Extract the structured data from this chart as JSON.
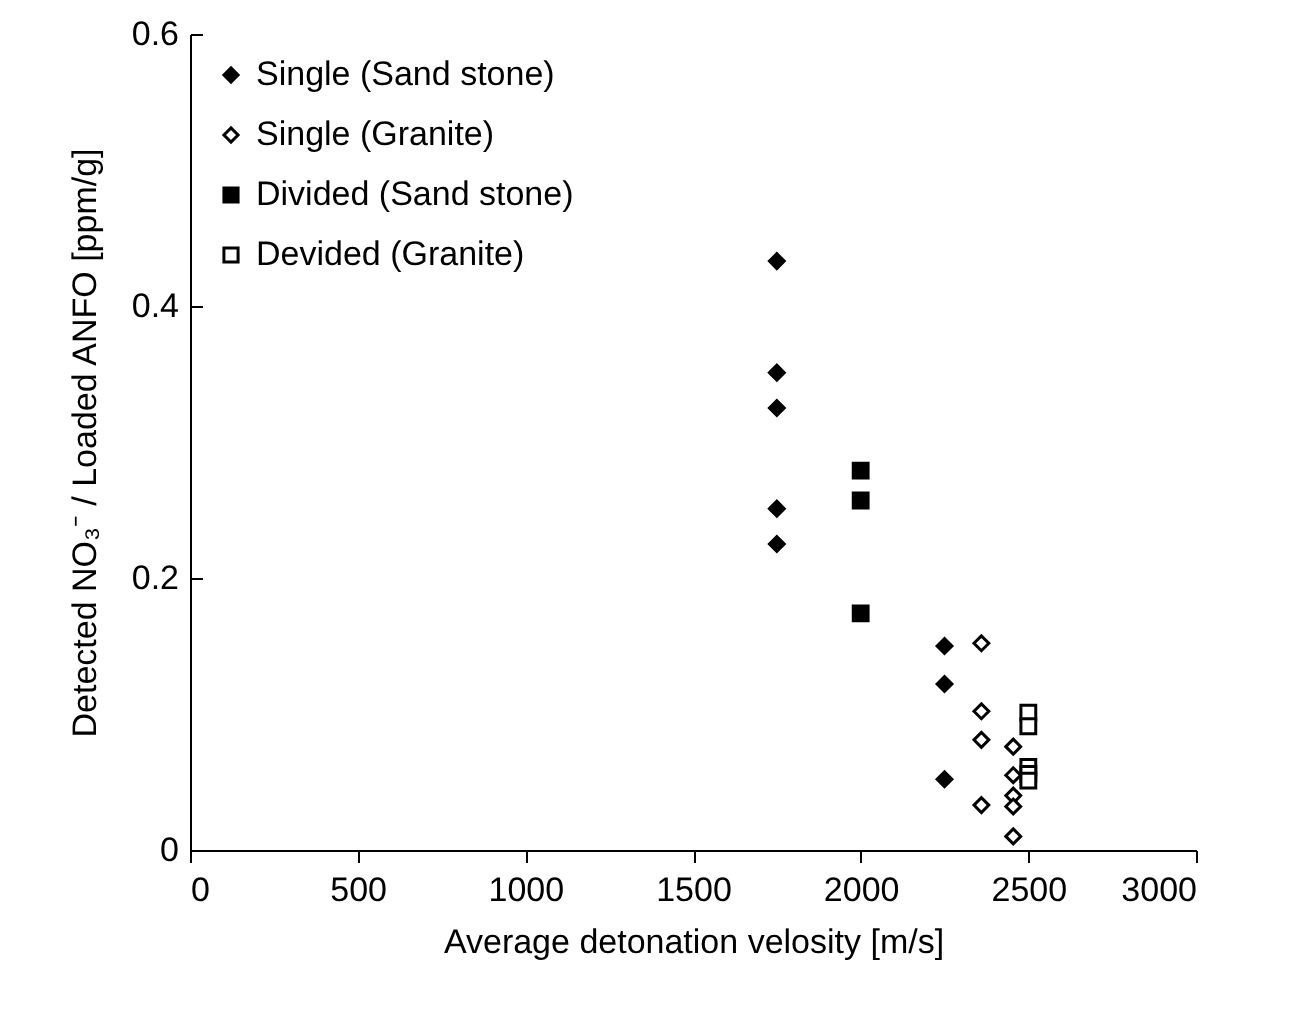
{
  "chart_data": {
    "type": "scatter",
    "xlabel": "Average detonation velosity [m/s]",
    "ylabel": "Detected NO₃⁻ / Loaded ANFO [ppm/g]",
    "xlim": [
      0,
      3000
    ],
    "xticks": [
      0,
      500,
      1000,
      1500,
      2000,
      2500,
      3000
    ],
    "ylim": [
      0,
      0.6
    ],
    "yticks": [
      0,
      0.2,
      0.4,
      0.6
    ],
    "legend": "top left",
    "series": [
      {
        "name": "Single (Sand stone)",
        "color": "#000000",
        "marker": "diamond",
        "x": [
          1750,
          1750,
          1750,
          1750,
          1750,
          2250,
          2250,
          2250
        ],
        "values": [
          0.433,
          0.351,
          0.325,
          0.251,
          0.225,
          0.15,
          0.122,
          0.052
        ]
      },
      {
        "name": "Single (Granite)",
        "color": "#ffffff",
        "marker": "diamond",
        "x": [
          2360,
          2360,
          2360,
          2360,
          2455,
          2455,
          2455,
          2455,
          2455
        ],
        "values": [
          0.152,
          0.102,
          0.081,
          0.033,
          0.076,
          0.055,
          0.04,
          0.032,
          0.01
        ]
      },
      {
        "name": "Divided (Sand stone)",
        "color": "#000000",
        "marker": "square",
        "x": [
          2000,
          2000,
          2000
        ],
        "values": [
          0.279,
          0.257,
          0.174
        ]
      },
      {
        "name": "Devided (Granite)",
        "color": "#ffffff",
        "marker": "square",
        "x": [
          2500,
          2500,
          2500,
          2500,
          2500
        ],
        "values": [
          0.101,
          0.091,
          0.061,
          0.056,
          0.051
        ]
      }
    ]
  }
}
